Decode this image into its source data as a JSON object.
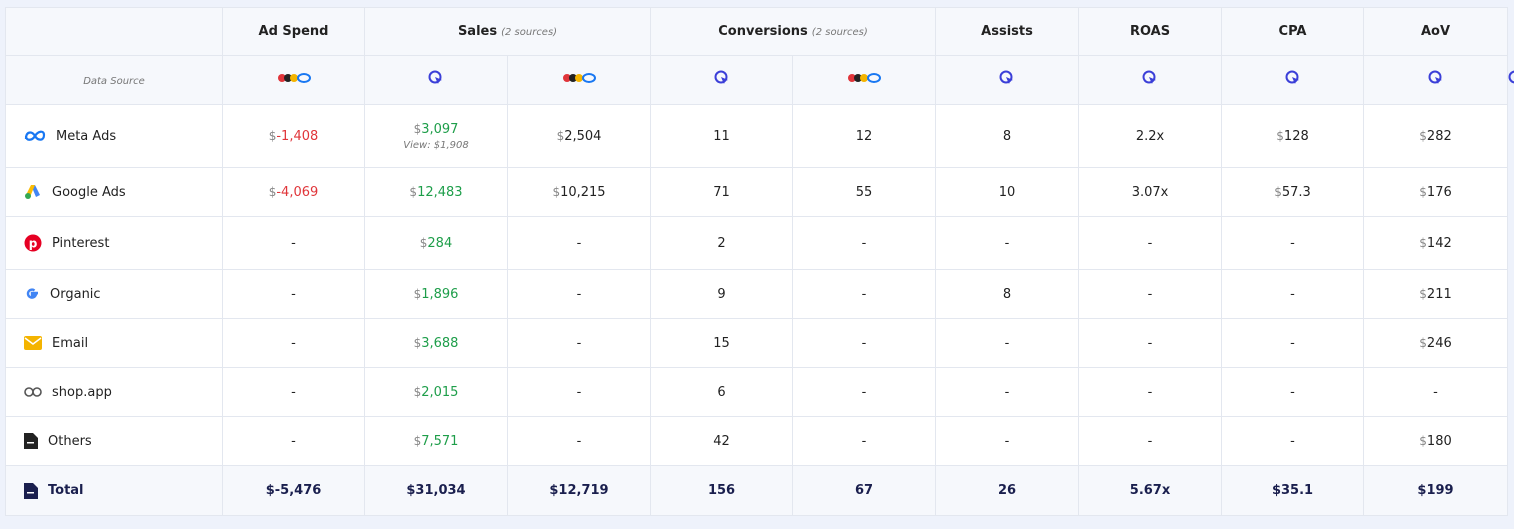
{
  "header": {
    "data_source_label": "Data Source",
    "columns": [
      {
        "title": "Ad Spend"
      },
      {
        "title": "Sales",
        "note": "(2 sources)"
      },
      {
        "title": "Conversions",
        "note": "(2 sources)"
      },
      {
        "title": "Assists"
      },
      {
        "title": "ROAS"
      },
      {
        "title": "CPA"
      },
      {
        "title": "AoV"
      }
    ]
  },
  "rows": [
    {
      "label": "Meta Ads",
      "cells": [
        {
          "unit": "$",
          "amount": "-1,408",
          "color": "#e0353a"
        },
        {
          "unit": "$",
          "amount": "3,097",
          "color": "#1e9e4a",
          "note": "View: $1,908"
        },
        {
          "unit": "$",
          "amount": "2,504"
        },
        "11",
        "12",
        "8",
        "2.2x",
        {
          "unit": "$",
          "amount": "128"
        },
        {
          "unit": "$",
          "amount": "282"
        }
      ]
    },
    {
      "label": "Google Ads",
      "cells": [
        {
          "unit": "$",
          "amount": "-4,069",
          "color": "#e0353a"
        },
        {
          "unit": "$",
          "amount": "12,483",
          "color": "#1e9e4a"
        },
        {
          "unit": "$",
          "amount": "10,215"
        },
        "71",
        "55",
        "10",
        "3.07x",
        {
          "unit": "$",
          "amount": "57.3"
        },
        {
          "unit": "$",
          "amount": "176"
        }
      ]
    },
    {
      "label": "Pinterest",
      "cells": [
        "-",
        {
          "unit": "$",
          "amount": "284",
          "color": "#1e9e4a"
        },
        "-",
        "2",
        "-",
        "-",
        "-",
        "-",
        {
          "unit": "$",
          "amount": "142"
        }
      ]
    },
    {
      "label": "Organic",
      "cells": [
        "-",
        {
          "unit": "$",
          "amount": "1,896",
          "color": "#1e9e4a"
        },
        "-",
        "9",
        "-",
        "8",
        "-",
        "-",
        {
          "unit": "$",
          "amount": "211"
        }
      ]
    },
    {
      "label": "Email",
      "cells": [
        "-",
        {
          "unit": "$",
          "amount": "3,688",
          "color": "#1e9e4a"
        },
        "-",
        "15",
        "-",
        "-",
        "-",
        "-",
        {
          "unit": "$",
          "amount": "246"
        }
      ]
    },
    {
      "label": "shop.app",
      "cells": [
        "-",
        {
          "unit": "$",
          "amount": "2,015",
          "color": "#1e9e4a"
        },
        "-",
        "6",
        "-",
        "-",
        "-",
        "-",
        "-"
      ]
    },
    {
      "label": "Others",
      "cells": [
        "-",
        {
          "unit": "$",
          "amount": "7,571",
          "color": "#1e9e4a"
        },
        "-",
        "42",
        "-",
        "-",
        "-",
        "-",
        {
          "unit": "$",
          "amount": "180"
        }
      ]
    }
  ],
  "total": {
    "label": "Total",
    "cells": [
      "$-5,476",
      "$31,034",
      "$12,719",
      "156",
      "67",
      "26",
      "5.67x",
      "$35.1",
      "$199"
    ]
  }
}
